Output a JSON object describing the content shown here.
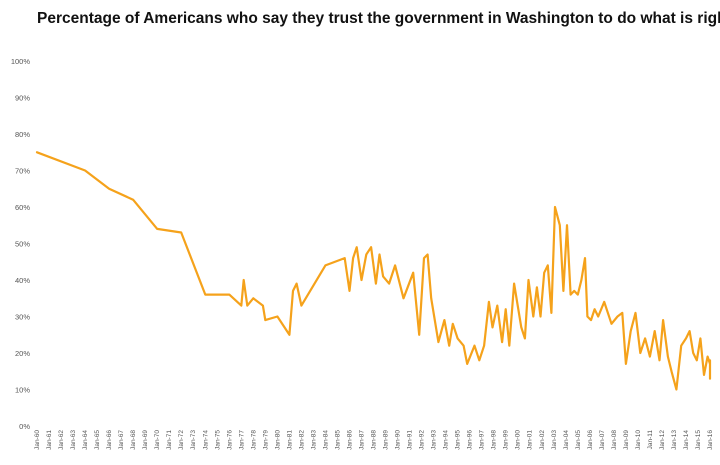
{
  "chart_data": {
    "type": "line",
    "title": "Percentage of Americans who say they trust the government in Washington to do what is right",
    "xlabel": "",
    "ylabel": "",
    "ylim": [
      0,
      100
    ],
    "yticks": [
      "0%",
      "10%",
      "20%",
      "30%",
      "40%",
      "50%",
      "60%",
      "70%",
      "80%",
      "90%",
      "100%"
    ],
    "xticks": [
      "Jan-60",
      "Jan-61",
      "Jan-62",
      "Jan-63",
      "Jan-64",
      "Jan-65",
      "Jan-66",
      "Jan-67",
      "Jan-68",
      "Jan-69",
      "Jan-70",
      "Jan-71",
      "Jan-72",
      "Jan-73",
      "Jan-74",
      "Jan-75",
      "Jan-76",
      "Jan-77",
      "Jan-78",
      "Jan-79",
      "Jan-80",
      "Jan-81",
      "Jan-82",
      "Jan-83",
      "Jan-84",
      "Jan-85",
      "Jan-86",
      "Jan-87",
      "Jan-88",
      "Jan-89",
      "Jan-90",
      "Jan-91",
      "Jan-92",
      "Jan-93",
      "Jan-94",
      "Jan-95",
      "Jan-96",
      "Jan-97",
      "Jan-98",
      "Jan-99",
      "Jan-00",
      "Jan-01",
      "Jan-02",
      "Jan-03",
      "Jan-04",
      "Jan-05",
      "Jan-06",
      "Jan-07",
      "Jan-08",
      "Jan-09",
      "Jan-10",
      "Jan-11",
      "Jan-12",
      "Jan-13",
      "Jan-14",
      "Jan-15",
      "Jan-16"
    ],
    "grid": false,
    "line_color": "#F5A21B",
    "series": [
      {
        "x": [
          1958.0,
          1964.0,
          1966.0,
          1968.0,
          1970.0,
          1972.0,
          1974.0,
          1976.0,
          1977.0,
          1977.2,
          1977.5,
          1978.0,
          1978.8,
          1979.0,
          1980.0,
          1980.8,
          1981.0,
          1981.3,
          1981.6,
          1982.0,
          1984.0,
          1985.6,
          1986.0,
          1986.3,
          1986.6,
          1987.0,
          1987.4,
          1987.8,
          1988.2,
          1988.5,
          1988.8,
          1989.3,
          1989.8,
          1990.5,
          1991.3,
          1991.8,
          1992.2,
          1992.5,
          1992.8,
          1993.4,
          1993.9,
          1994.3,
          1994.6,
          1995.0,
          1995.5,
          1995.8,
          1996.4,
          1996.8,
          1997.2,
          1997.6,
          1997.9,
          1998.3,
          1998.7,
          1999.0,
          1999.3,
          1999.7,
          2000.0,
          2000.3,
          2000.6,
          2000.9,
          2001.3,
          2001.6,
          2001.9,
          2002.2,
          2002.5,
          2002.8,
          2003.1,
          2003.5,
          2003.8,
          2004.1,
          2004.4,
          2004.7,
          2005.0,
          2005.3,
          2005.6,
          2005.8,
          2006.1,
          2006.4,
          2006.7,
          2007.2,
          2007.8,
          2008.3,
          2008.7,
          2009.0,
          2009.4,
          2009.8,
          2010.2,
          2010.6,
          2011.0,
          2011.4,
          2011.8,
          2012.1,
          2012.5,
          2012.8,
          2013.2,
          2013.6,
          2014.0,
          2014.3,
          2014.6,
          2014.9,
          2015.2,
          2015.5,
          2015.8,
          2016.1,
          2016.4,
          2016.7,
          2017.0,
          2017.3,
          2017.7,
          2018.0
        ],
        "y": [
          75,
          70,
          65,
          62,
          54,
          53,
          36,
          36,
          33,
          40,
          33,
          35,
          33,
          29,
          30,
          26,
          25,
          37,
          39,
          33,
          44,
          46,
          37,
          46,
          49,
          40,
          47,
          49,
          39,
          47,
          41,
          39,
          44,
          35,
          42,
          25,
          46,
          47,
          35,
          23,
          29,
          22,
          28,
          24,
          22,
          17,
          22,
          18,
          22,
          34,
          27,
          33,
          23,
          32,
          22,
          39,
          33,
          27,
          24,
          40,
          30,
          38,
          30,
          42,
          44,
          31,
          60,
          55,
          37,
          55,
          36,
          37,
          36,
          40,
          46,
          30,
          29,
          32,
          30,
          34,
          28,
          30,
          31,
          17,
          26,
          31,
          20,
          24,
          19,
          26,
          18,
          29,
          19,
          15,
          10,
          22,
          24,
          26,
          20,
          18,
          24,
          14,
          19,
          17,
          15,
          15,
          13,
          18,
          16,
          14
        ]
      }
    ]
  }
}
